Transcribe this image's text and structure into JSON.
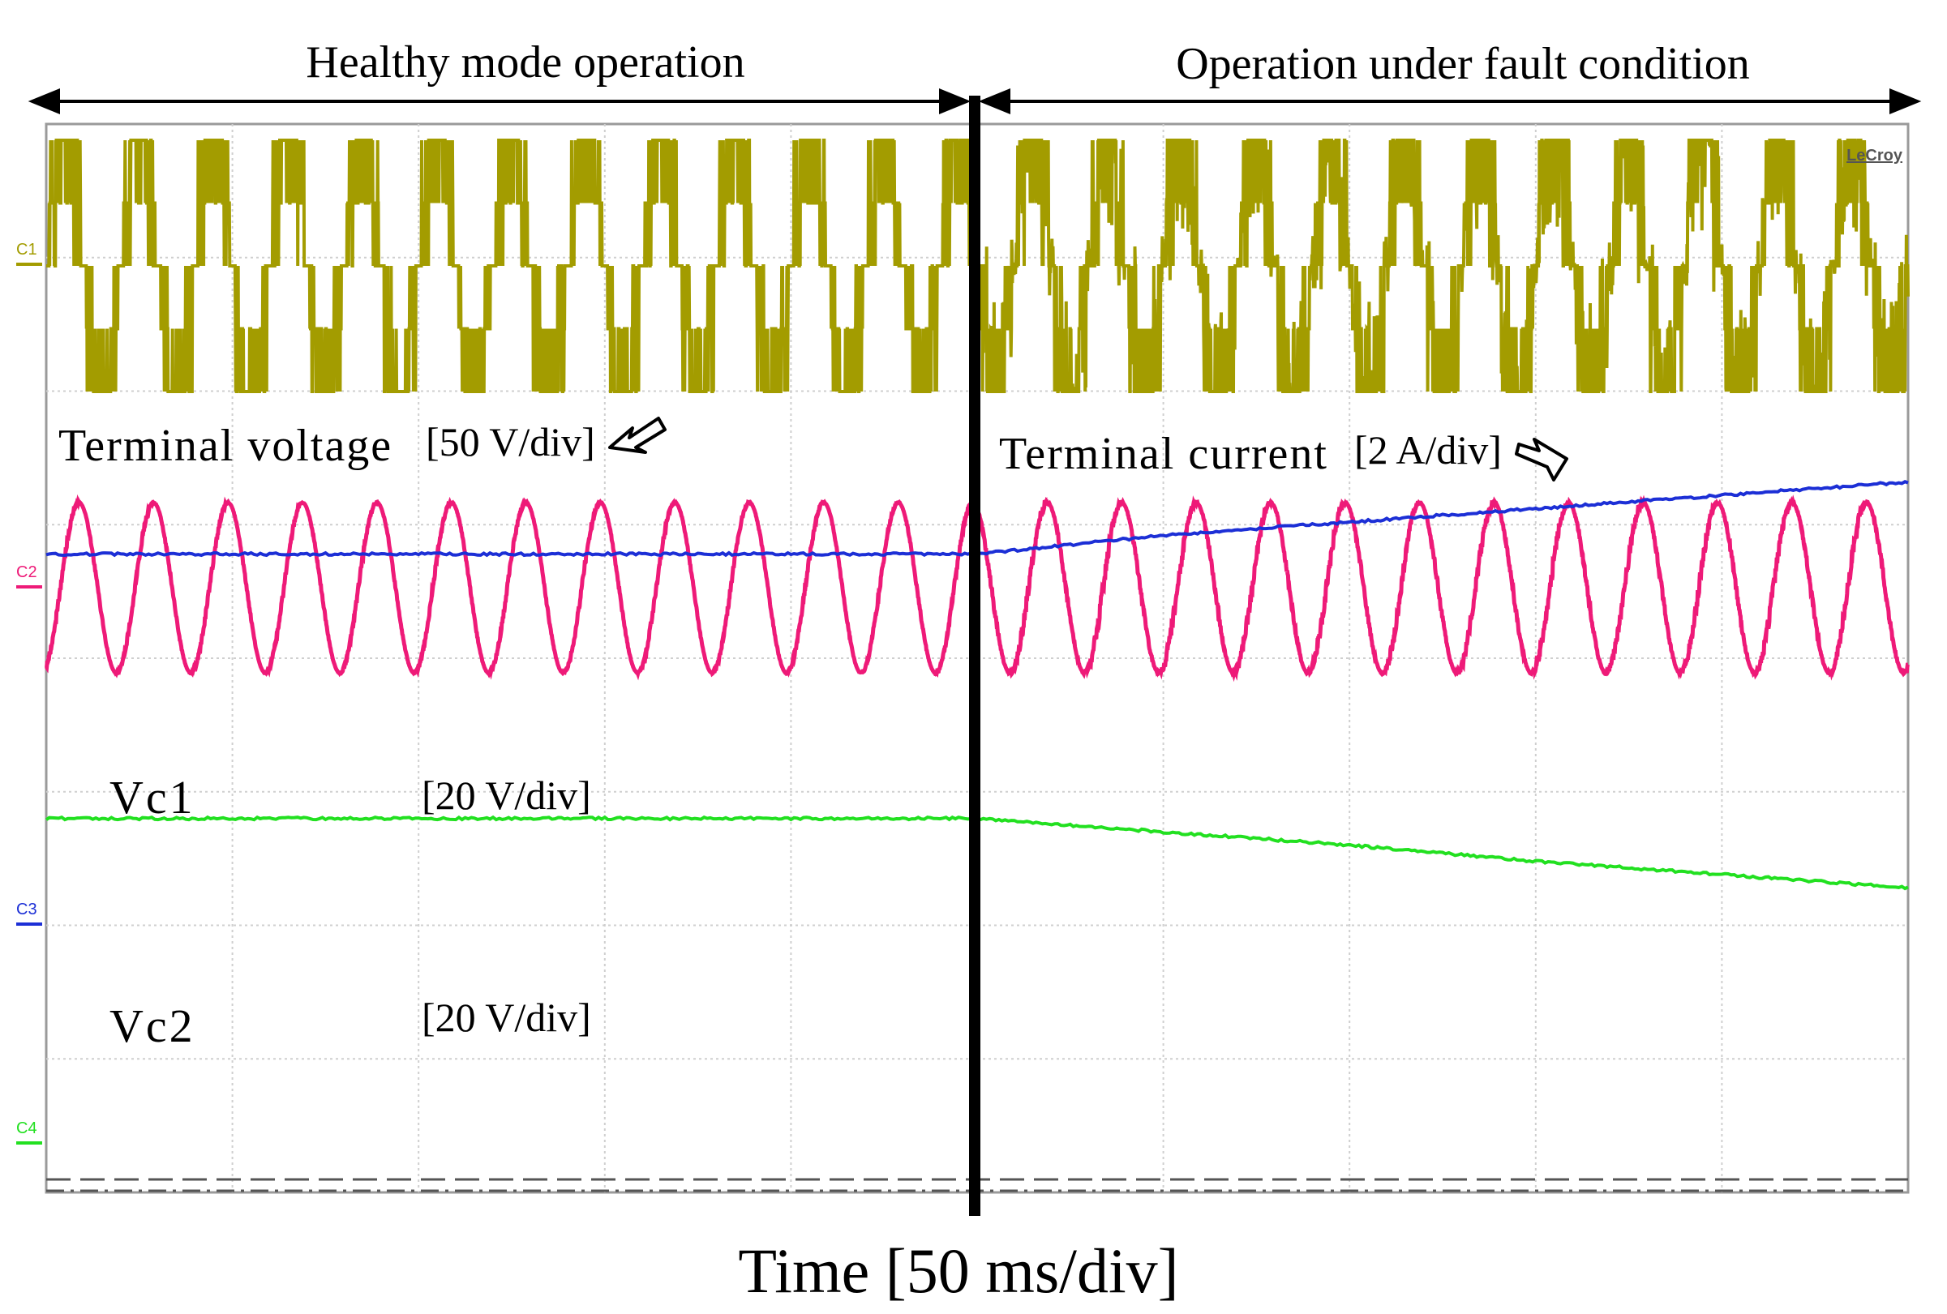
{
  "chart_data": {
    "type": "line",
    "title": "",
    "xlabel": "Time [50 ms/div]",
    "ylabel": "",
    "grid": true,
    "x_divisions": 10,
    "y_divisions": 8,
    "brand": "LeCroy",
    "annotations": {
      "healthy": "Healthy mode operation",
      "fault": "Operation under fault condition",
      "terminal_voltage": "Terminal voltage",
      "terminal_voltage_scale": "[50 V/div]",
      "terminal_current": "Terminal current",
      "terminal_current_scale": "[2 A/div]",
      "vc1": "Vc1",
      "vc1_scale": "[20 V/div]",
      "vc2": "Vc2",
      "vc2_scale": "[20 V/div]"
    },
    "fault_time_div": 5.0,
    "series": [
      {
        "name": "C1",
        "label": "Terminal voltage",
        "color": "#a39c00",
        "kind": "multilevel",
        "cycles": 25
      },
      {
        "name": "C2",
        "label": "Terminal current",
        "color": "#ee1a78",
        "kind": "sine",
        "cycles": 25
      },
      {
        "name": "C3",
        "label": "Vc1",
        "color": "#1c2fd6",
        "kind": "dc",
        "x": [
          0,
          5.0,
          6.0,
          7.0,
          8.0,
          9.0,
          10.0
        ],
        "y_div": [
          4.78,
          4.78,
          4.92,
          5.02,
          5.12,
          5.22,
          5.32
        ]
      },
      {
        "name": "C4",
        "label": "Vc2",
        "color": "#22e020",
        "kind": "dc",
        "x": [
          0,
          5.0,
          6.0,
          7.0,
          8.0,
          9.0,
          10.0
        ],
        "y_div": [
          2.8,
          2.8,
          2.7,
          2.6,
          2.48,
          2.38,
          2.28
        ]
      }
    ]
  }
}
